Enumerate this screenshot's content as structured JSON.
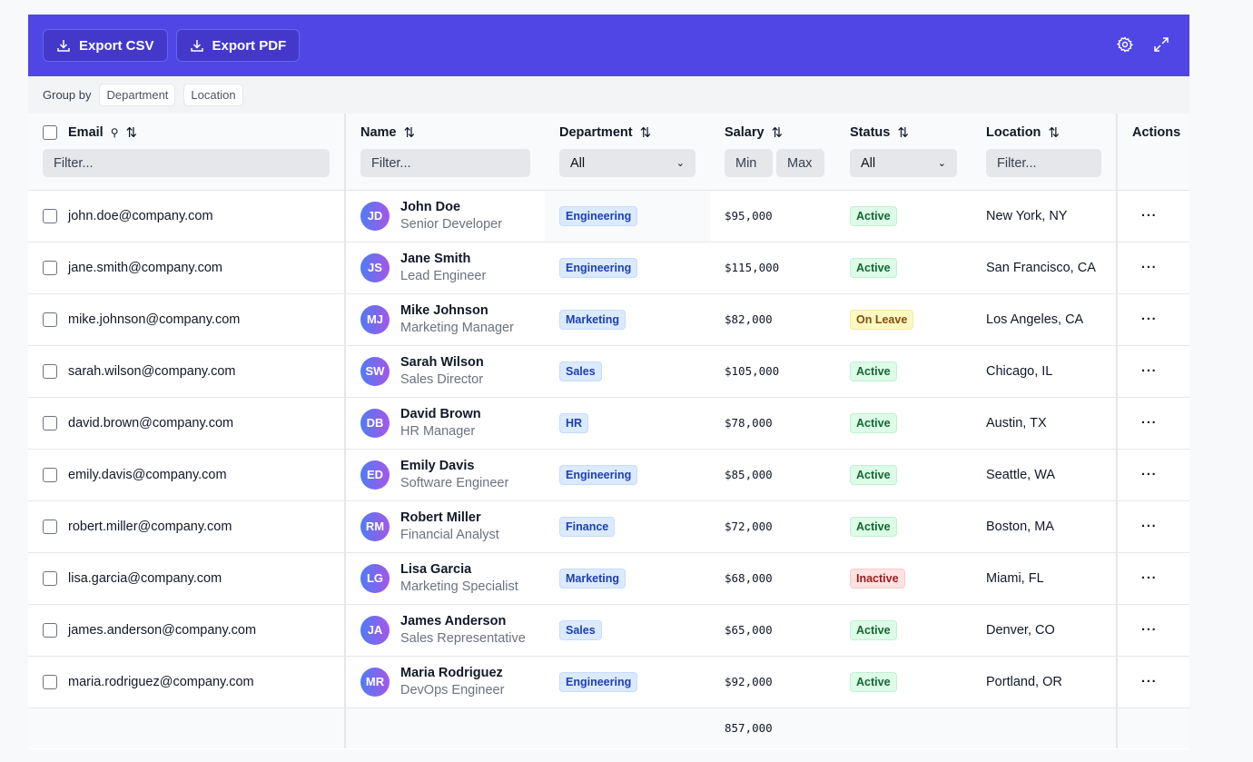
{
  "toolbar": {
    "export_csv": "Export CSV",
    "export_pdf": "Export PDF",
    "accent": "#4f46e5"
  },
  "group_by": {
    "label": "Group by",
    "options": [
      "Department",
      "Location"
    ]
  },
  "columns": {
    "email": "Email",
    "name": "Name",
    "department": "Department",
    "salary": "Salary",
    "status": "Status",
    "location": "Location",
    "actions": "Actions"
  },
  "filters": {
    "email_placeholder": "Filter...",
    "name_placeholder": "Filter...",
    "department_value": "All",
    "salary_min_placeholder": "Min",
    "salary_max_placeholder": "Max",
    "status_value": "All",
    "location_placeholder": "Filter..."
  },
  "rows": [
    {
      "email": "john.doe@company.com",
      "initials": "JD",
      "name": "John Doe",
      "title": "Senior Developer",
      "department": "Engineering",
      "salary": "$95,000",
      "status": "Active",
      "location": "New York, NY"
    },
    {
      "email": "jane.smith@company.com",
      "initials": "JS",
      "name": "Jane Smith",
      "title": "Lead Engineer",
      "department": "Engineering",
      "salary": "$115,000",
      "status": "Active",
      "location": "San Francisco, CA"
    },
    {
      "email": "mike.johnson@company.com",
      "initials": "MJ",
      "name": "Mike Johnson",
      "title": "Marketing Manager",
      "department": "Marketing",
      "salary": "$82,000",
      "status": "On Leave",
      "location": "Los Angeles, CA"
    },
    {
      "email": "sarah.wilson@company.com",
      "initials": "SW",
      "name": "Sarah Wilson",
      "title": "Sales Director",
      "department": "Sales",
      "salary": "$105,000",
      "status": "Active",
      "location": "Chicago, IL"
    },
    {
      "email": "david.brown@company.com",
      "initials": "DB",
      "name": "David Brown",
      "title": "HR Manager",
      "department": "HR",
      "salary": "$78,000",
      "status": "Active",
      "location": "Austin, TX"
    },
    {
      "email": "emily.davis@company.com",
      "initials": "ED",
      "name": "Emily Davis",
      "title": "Software Engineer",
      "department": "Engineering",
      "salary": "$85,000",
      "status": "Active",
      "location": "Seattle, WA"
    },
    {
      "email": "robert.miller@company.com",
      "initials": "RM",
      "name": "Robert Miller",
      "title": "Financial Analyst",
      "department": "Finance",
      "salary": "$72,000",
      "status": "Active",
      "location": "Boston, MA"
    },
    {
      "email": "lisa.garcia@company.com",
      "initials": "LG",
      "name": "Lisa Garcia",
      "title": "Marketing Specialist",
      "department": "Marketing",
      "salary": "$68,000",
      "status": "Inactive",
      "location": "Miami, FL"
    },
    {
      "email": "james.anderson@company.com",
      "initials": "JA",
      "name": "James Anderson",
      "title": "Sales Representative",
      "department": "Sales",
      "salary": "$65,000",
      "status": "Active",
      "location": "Denver, CO"
    },
    {
      "email": "maria.rodriguez@company.com",
      "initials": "MR",
      "name": "Maria Rodriguez",
      "title": "DevOps Engineer",
      "department": "Engineering",
      "salary": "$92,000",
      "status": "Active",
      "location": "Portland, OR"
    }
  ],
  "footer": {
    "salary_total": "857,000"
  },
  "actions_icon": "more-horizontal-icon",
  "actions_label": "···"
}
